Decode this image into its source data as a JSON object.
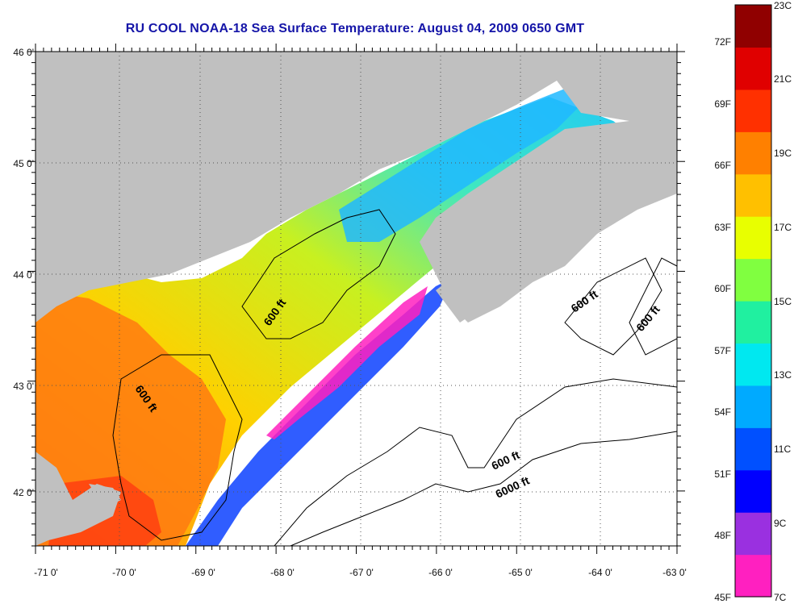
{
  "title": "RU COOL  NOAA-18  Sea Surface Temperature:  August 04, 2009 0650 GMT",
  "map": {
    "lon_range": [
      -71,
      -63
    ],
    "lat_range": [
      41.5,
      46
    ],
    "lon_ticks": [
      -71,
      -70,
      -69,
      -68,
      -67,
      -66,
      -65,
      -64,
      -63
    ],
    "lon_tick_labels": [
      "-71 0'",
      "-70 0'",
      "-69 0'",
      "-68 0'",
      "-67 0'",
      "-66 0'",
      "-65 0'",
      "-64 0'",
      "-63 0'"
    ],
    "lat_ticks": [
      46,
      45,
      44,
      43,
      42
    ],
    "lat_tick_labels": [
      "46 0'",
      "45 0'",
      "44 0'",
      "43 0'",
      "42 0'"
    ],
    "grid": "dotted",
    "land_color": "#c0c0c0",
    "no_data_color": "#ffffff",
    "contour_labels": [
      "600 ft",
      "600 ft",
      "600 ft",
      "600 ft",
      "600 ft",
      "6000 ft"
    ]
  },
  "colorbar": {
    "celsius_labels": [
      "23C",
      "21C",
      "19C",
      "17C",
      "15C",
      "13C",
      "11C",
      "9C",
      "7C"
    ],
    "fahrenheit_labels": [
      "72F",
      "69F",
      "66F",
      "63F",
      "60F",
      "57F",
      "54F",
      "51F",
      "48F",
      "45F"
    ],
    "colors": [
      "#ff20c0",
      "#9a30e0",
      "#0000ff",
      "#0050ff",
      "#00aaff",
      "#00e8f0",
      "#20f0a0",
      "#80ff40",
      "#e8ff00",
      "#ffc000",
      "#ff8000",
      "#ff3000",
      "#e00000",
      "#900000"
    ]
  }
}
